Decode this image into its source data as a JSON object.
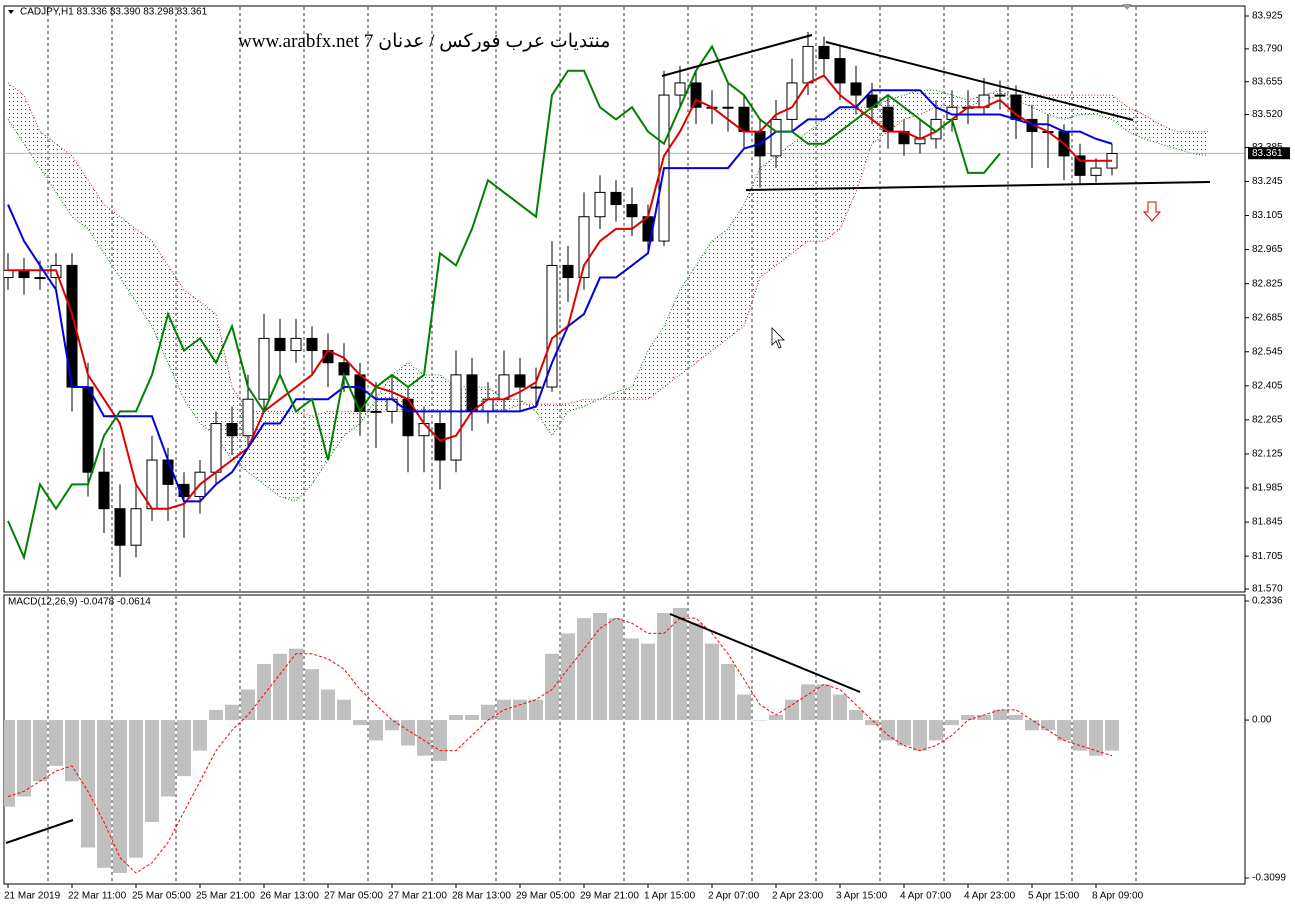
{
  "chart_data": [
    {
      "type": "candlestick",
      "title": "CADJPY,H1  83.336 83.390 83.298 83.361",
      "annotation": "منتديات عرب فوركس / عدنان 7 www.arabfx.net",
      "categories": [
        "21 Mar 2019",
        null,
        null,
        null,
        "22 Mar 11:00",
        null,
        null,
        null,
        "25 Mar 05:00",
        null,
        null,
        null,
        "25 Mar 21:00",
        null,
        null,
        null,
        "26 Mar 13:00",
        null,
        null,
        null,
        "27 Mar 05:00",
        null,
        null,
        null,
        "27 Mar 21:00",
        null,
        null,
        null,
        "28 Mar 13:00",
        null,
        null,
        null,
        "29 Mar 05:00",
        null,
        null,
        null,
        "29 Mar 21:00",
        null,
        null,
        null,
        "1 Apr 15:00",
        null,
        null,
        null,
        "2 Apr 07:00",
        null,
        null,
        null,
        "2 Apr 23:00",
        null,
        null,
        null,
        "3 Apr 15:00",
        null,
        null,
        null,
        "4 Apr 07:00",
        null,
        null,
        null,
        "4 Apr 23:00",
        null,
        null,
        null,
        "5 Apr 15:00",
        null,
        null,
        null,
        "8 Apr 09:00",
        null,
        null,
        null,
        null,
        null,
        null,
        null
      ],
      "ohlc": [
        [
          82.85,
          82.95,
          82.8,
          82.88
        ],
        [
          82.88,
          82.93,
          82.78,
          82.85
        ],
        [
          82.85,
          82.92,
          82.8,
          82.85
        ],
        [
          82.85,
          82.95,
          82.8,
          82.9
        ],
        [
          82.9,
          82.95,
          82.3,
          82.4
        ],
        [
          82.4,
          82.5,
          81.95,
          82.05
        ],
        [
          82.05,
          82.15,
          81.8,
          81.9
        ],
        [
          81.9,
          82.0,
          81.62,
          81.75
        ],
        [
          81.75,
          82.0,
          81.7,
          81.9
        ],
        [
          81.9,
          82.2,
          81.85,
          82.1
        ],
        [
          82.1,
          82.15,
          81.85,
          82.0
        ],
        [
          82.0,
          82.05,
          81.78,
          81.95
        ],
        [
          81.95,
          82.1,
          81.88,
          82.05
        ],
        [
          82.05,
          82.3,
          82.0,
          82.25
        ],
        [
          82.25,
          82.32,
          82.12,
          82.2
        ],
        [
          82.2,
          82.45,
          82.15,
          82.35
        ],
        [
          82.35,
          82.7,
          82.3,
          82.6
        ],
        [
          82.6,
          82.68,
          82.45,
          82.55
        ],
        [
          82.55,
          82.68,
          82.5,
          82.6
        ],
        [
          82.6,
          82.65,
          82.45,
          82.55
        ],
        [
          82.55,
          82.62,
          82.4,
          82.5
        ],
        [
          82.5,
          82.58,
          82.38,
          82.45
        ],
        [
          82.45,
          82.5,
          82.2,
          82.3
        ],
        [
          82.3,
          82.42,
          82.15,
          82.3
        ],
        [
          82.3,
          82.45,
          82.25,
          82.35
        ],
        [
          82.35,
          82.4,
          82.05,
          82.2
        ],
        [
          82.2,
          82.32,
          82.05,
          82.25
        ],
        [
          82.25,
          82.3,
          81.98,
          82.1
        ],
        [
          82.1,
          82.55,
          82.05,
          82.45
        ],
        [
          82.45,
          82.52,
          82.22,
          82.3
        ],
        [
          82.3,
          82.42,
          82.25,
          82.35
        ],
        [
          82.35,
          82.55,
          82.3,
          82.45
        ],
        [
          82.45,
          82.52,
          82.3,
          82.4
        ],
        [
          82.4,
          82.48,
          82.32,
          82.4
        ],
        [
          82.4,
          83.0,
          82.38,
          82.9
        ],
        [
          82.9,
          82.98,
          82.75,
          82.85
        ],
        [
          82.85,
          83.2,
          82.8,
          83.1
        ],
        [
          83.1,
          83.27,
          83.05,
          83.2
        ],
        [
          83.2,
          83.25,
          83.08,
          83.15
        ],
        [
          83.15,
          83.22,
          83.02,
          83.1
        ],
        [
          83.1,
          83.15,
          82.95,
          83.0
        ],
        [
          83.0,
          83.7,
          82.98,
          83.6
        ],
        [
          83.6,
          83.72,
          83.55,
          83.65
        ],
        [
          83.65,
          83.7,
          83.48,
          83.55
        ],
        [
          83.55,
          83.62,
          83.48,
          83.55
        ],
        [
          83.55,
          83.65,
          83.45,
          83.55
        ],
        [
          83.55,
          83.6,
          83.38,
          83.45
        ],
        [
          83.45,
          83.5,
          83.22,
          83.35
        ],
        [
          83.35,
          83.58,
          83.3,
          83.5
        ],
        [
          83.5,
          83.75,
          83.45,
          83.65
        ],
        [
          83.65,
          83.86,
          83.6,
          83.8
        ],
        [
          83.8,
          83.84,
          83.68,
          83.75
        ],
        [
          83.75,
          83.8,
          83.58,
          83.65
        ],
        [
          83.65,
          83.72,
          83.52,
          83.6
        ],
        [
          83.6,
          83.65,
          83.48,
          83.55
        ],
        [
          83.55,
          83.6,
          83.38,
          83.45
        ],
        [
          83.45,
          83.5,
          83.35,
          83.4
        ],
        [
          83.4,
          83.5,
          83.36,
          83.42
        ],
        [
          83.42,
          83.58,
          83.38,
          83.5
        ],
        [
          83.5,
          83.62,
          83.45,
          83.55
        ],
        [
          83.55,
          83.62,
          83.48,
          83.55
        ],
        [
          83.55,
          83.67,
          83.52,
          83.6
        ],
        [
          83.6,
          83.66,
          83.54,
          83.6
        ],
        [
          83.6,
          83.64,
          83.42,
          83.5
        ],
        [
          83.5,
          83.56,
          83.3,
          83.45
        ],
        [
          83.45,
          83.52,
          83.3,
          83.45
        ],
        [
          83.45,
          83.48,
          83.25,
          83.35
        ],
        [
          83.35,
          83.4,
          83.23,
          83.27
        ],
        [
          83.27,
          83.34,
          83.24,
          83.3
        ],
        [
          83.3,
          83.4,
          83.27,
          83.36
        ],
        null,
        null,
        null,
        null,
        null,
        null
      ],
      "up_color": "#ffffff",
      "down_color": "#000000",
      "series": [
        {
          "color": "#e00000",
          "values": [
            82.88,
            82.88,
            82.88,
            82.88,
            82.7,
            82.45,
            82.35,
            82.25,
            82.0,
            81.9,
            81.9,
            81.92,
            82.0,
            82.05,
            82.1,
            82.15,
            82.3,
            82.35,
            82.4,
            82.45,
            82.55,
            82.52,
            82.45,
            82.4,
            82.38,
            82.35,
            82.25,
            82.18,
            82.2,
            82.3,
            82.35,
            82.35,
            82.38,
            82.42,
            82.6,
            82.65,
            82.9,
            83.0,
            83.05,
            83.05,
            83.1,
            83.35,
            83.45,
            83.58,
            83.55,
            83.5,
            83.45,
            83.45,
            83.52,
            83.55,
            83.65,
            83.68,
            83.6,
            83.55,
            83.5,
            83.45,
            83.45,
            83.42,
            83.45,
            83.5,
            83.55,
            83.55,
            83.58,
            83.52,
            83.48,
            83.45,
            83.4,
            83.33,
            83.33,
            83.33,
            null,
            null,
            null,
            null,
            null,
            null
          ]
        },
        {
          "color": "#0000e0",
          "values": [
            83.15,
            83.0,
            82.9,
            82.8,
            82.4,
            82.4,
            82.28,
            82.28,
            82.28,
            82.28,
            82.1,
            81.93,
            81.93,
            82.0,
            82.05,
            82.15,
            82.25,
            82.25,
            82.35,
            82.35,
            82.35,
            82.4,
            82.4,
            82.35,
            82.35,
            82.3,
            82.3,
            82.3,
            82.3,
            82.3,
            82.3,
            82.3,
            82.3,
            82.32,
            82.5,
            82.65,
            82.7,
            82.85,
            82.85,
            82.9,
            82.95,
            83.3,
            83.3,
            83.3,
            83.3,
            83.3,
            83.38,
            83.4,
            83.45,
            83.45,
            83.5,
            83.5,
            83.55,
            83.55,
            83.62,
            83.62,
            83.62,
            83.62,
            83.55,
            83.52,
            83.52,
            83.52,
            83.52,
            83.5,
            83.48,
            83.48,
            83.45,
            83.45,
            83.42,
            83.4,
            null,
            null,
            null,
            null,
            null,
            null
          ]
        },
        {
          "color": "#008000",
          "values": [
            81.85,
            81.7,
            82.0,
            81.9,
            82.0,
            82.0,
            82.2,
            82.3,
            82.3,
            82.45,
            82.7,
            82.55,
            82.6,
            82.5,
            82.65,
            82.4,
            82.3,
            82.45,
            82.3,
            82.35,
            82.1,
            82.45,
            82.3,
            82.4,
            82.45,
            82.4,
            82.45,
            82.95,
            82.9,
            83.05,
            83.25,
            83.2,
            83.15,
            83.1,
            83.6,
            83.7,
            83.7,
            83.55,
            83.5,
            83.55,
            83.45,
            83.4,
            83.55,
            83.7,
            83.8,
            83.65,
            83.6,
            83.5,
            83.45,
            83.45,
            83.4,
            83.4,
            83.45,
            83.5,
            83.55,
            83.6,
            83.55,
            83.5,
            83.45,
            83.5,
            83.28,
            83.28,
            83.36,
            null,
            null,
            null,
            null,
            null,
            null,
            null,
            null,
            null,
            null,
            null,
            null,
            null
          ]
        }
      ],
      "cloud": {
        "up_color": "#008000",
        "down_color": "#b22222",
        "span_a": [
          83.5,
          83.4,
          83.3,
          83.2,
          83.1,
          83.05,
          82.95,
          82.85,
          82.75,
          82.65,
          82.5,
          82.35,
          82.25,
          82.2,
          82.1,
          82.05,
          82.0,
          81.95,
          81.93,
          82.0,
          82.1,
          82.2,
          82.25,
          82.35,
          82.45,
          82.5,
          82.45,
          82.45,
          82.4,
          82.4,
          82.4,
          82.35,
          82.35,
          82.3,
          82.2,
          82.3,
          82.32,
          82.35,
          82.38,
          82.4,
          82.55,
          82.65,
          82.8,
          82.9,
          83.0,
          83.05,
          83.15,
          83.3,
          83.35,
          83.4,
          83.45,
          83.5,
          83.55,
          83.55,
          83.55,
          83.58,
          83.6,
          83.62,
          83.62,
          83.6,
          83.58,
          83.6,
          83.62,
          83.58,
          83.55,
          83.52,
          83.5,
          83.52,
          83.52,
          83.5,
          83.45,
          83.42,
          83.4,
          83.38,
          83.36,
          83.35
        ],
        "span_b": [
          83.65,
          83.6,
          83.45,
          83.4,
          83.35,
          83.25,
          83.15,
          83.1,
          83.05,
          83.0,
          82.9,
          82.8,
          82.75,
          82.7,
          82.4,
          82.3,
          82.3,
          82.3,
          82.3,
          82.28,
          82.3,
          82.3,
          82.3,
          82.3,
          82.3,
          82.3,
          82.3,
          82.3,
          82.3,
          82.3,
          82.3,
          82.3,
          82.33,
          82.33,
          82.33,
          82.33,
          82.35,
          82.35,
          82.35,
          82.35,
          82.35,
          82.4,
          82.45,
          82.5,
          82.55,
          82.6,
          82.65,
          82.85,
          82.9,
          82.95,
          83.0,
          83.0,
          83.05,
          83.2,
          83.4,
          83.45,
          83.5,
          83.52,
          83.55,
          83.55,
          83.55,
          83.58,
          83.6,
          83.6,
          83.6,
          83.6,
          83.6,
          83.6,
          83.6,
          83.6,
          83.55,
          83.52,
          83.48,
          83.45,
          83.45,
          83.45
        ]
      },
      "current_price": 83.361,
      "ylim": [
        81.57,
        83.925
      ],
      "yticks": [
        83.925,
        {
          "value": 83.79,
          "label": "83.790"
        },
        83.655,
        {
          "value": 83.52,
          "label": "83.520"
        },
        83.385,
        83.245,
        83.105,
        82.965,
        82.825,
        82.685,
        82.545,
        82.405,
        82.265,
        82.125,
        81.985,
        81.845,
        81.705,
        {
          "value": 81.57,
          "label": "81.570"
        }
      ],
      "grid": true
    },
    {
      "type": "macd",
      "title": "MACD(12,26,9) -0.0478 -0.0614",
      "color": "#c0c0c0",
      "signal_color": "#ff0000",
      "values": [
        -0.17,
        -0.15,
        -0.12,
        -0.09,
        -0.12,
        -0.25,
        -0.29,
        -0.3,
        -0.27,
        -0.2,
        -0.15,
        -0.11,
        -0.06,
        0.02,
        0.03,
        0.06,
        0.11,
        0.13,
        0.14,
        0.1,
        0.06,
        0.04,
        -0.01,
        -0.04,
        -0.02,
        -0.05,
        -0.07,
        -0.08,
        0.01,
        0.01,
        0.03,
        0.04,
        0.04,
        0.04,
        0.13,
        0.17,
        0.2,
        0.21,
        0.2,
        0.16,
        0.15,
        0.21,
        0.22,
        0.19,
        0.15,
        0.11,
        0.05,
        0,
        0.01,
        0.04,
        0.07,
        0.07,
        0.05,
        0.02,
        -0.01,
        -0.04,
        -0.05,
        -0.06,
        -0.04,
        -0.01,
        0.01,
        0.01,
        0.02,
        0.01,
        -0.02,
        -0.02,
        -0.04,
        -0.06,
        -0.07,
        -0.06
      ],
      "signal": [
        -0.15,
        -0.14,
        -0.12,
        -0.1,
        -0.09,
        -0.14,
        -0.2,
        -0.27,
        -0.3,
        -0.28,
        -0.24,
        -0.18,
        -0.12,
        -0.06,
        -0.02,
        0.01,
        0.05,
        0.09,
        0.13,
        0.13,
        0.12,
        0.1,
        0.06,
        0.03,
        0,
        -0.02,
        -0.04,
        -0.06,
        -0.06,
        -0.03,
        0,
        0.02,
        0.03,
        0.04,
        0.06,
        0.1,
        0.14,
        0.18,
        0.2,
        0.19,
        0.17,
        0.17,
        0.2,
        0.2,
        0.17,
        0.13,
        0.08,
        0.03,
        0.01,
        0.03,
        0.05,
        0.07,
        0.06,
        0.03,
        0,
        -0.03,
        -0.05,
        -0.06,
        -0.05,
        -0.03,
        0,
        0.01,
        0.02,
        0.02,
        0,
        -0.02,
        -0.04,
        -0.05,
        -0.06,
        -0.07
      ],
      "ylim": [
        -0.3099,
        0.2336
      ],
      "yticks": [
        0.2336,
        {
          "value": 0,
          "label": "0.00"
        },
        -0.3099
      ]
    }
  ]
}
